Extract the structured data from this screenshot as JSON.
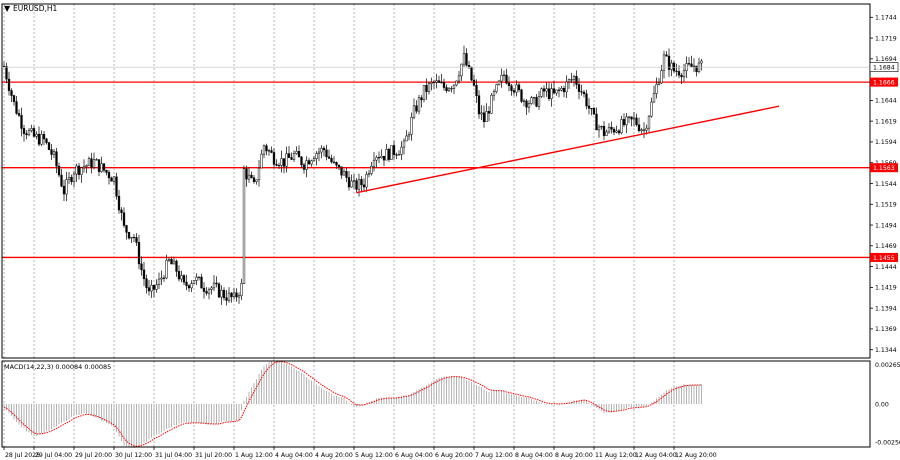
{
  "window": {
    "title": "EURUSD,H1",
    "menu_icon": "triangle-down-icon"
  },
  "colors": {
    "background": "#ffffff",
    "axis": "#000000",
    "grid": "#808080",
    "candle": "#000000",
    "level_line": "#ff0000",
    "level_label_bg": "#ff0000",
    "level_label_text": "#ffffff",
    "current_price_bg": "#ffffff",
    "macd_hist": "#a0a0a0",
    "macd_signal": "#ff0000"
  },
  "chart_data": [
    {
      "type": "candlestick",
      "symbol": "EURUSD",
      "timeframe": "H1",
      "y_ticks": [
        "1.1744",
        "1.1719",
        "1.1694",
        "1.1669",
        "1.1644",
        "1.1619",
        "1.1594",
        "1.1569",
        "1.1544",
        "1.1519",
        "1.1494",
        "1.1469",
        "1.1444",
        "1.1419",
        "1.1394",
        "1.1369",
        "1.1344"
      ],
      "ylim": [
        1.1334,
        1.176
      ],
      "x_ticks": [
        "28 Jul 2025",
        "29 Jul 04:00",
        "29 Jul 20:00",
        "30 Jul 12:00",
        "31 Jul 04:00",
        "31 Jul 20:00",
        "1 Aug 12:00",
        "4 Aug 04:00",
        "4 Aug 20:00",
        "5 Aug 12:00",
        "6 Aug 04:00",
        "6 Aug 20:00",
        "7 Aug 12:00",
        "8 Aug 04:00",
        "8 Aug 20:00",
        "11 Aug 12:00",
        "12 Aug 04:00",
        "12 Aug 20:00"
      ],
      "x_tick_index": [
        0,
        12,
        28,
        44,
        60,
        76,
        92,
        108,
        124,
        140,
        156,
        172,
        188,
        204,
        220,
        236,
        252,
        268
      ],
      "bar_count": 280,
      "levels": [
        {
          "value": 1.1666,
          "label": "1.1666"
        },
        {
          "value": 1.1563,
          "label": "1.1563"
        },
        {
          "value": 1.1455,
          "label": "1.1455"
        }
      ],
      "current_price": {
        "value": 1.1684,
        "label": "1.1684"
      },
      "trendline": {
        "from": {
          "bar": 141,
          "price": 1.1533
        },
        "to": {
          "bar": 310,
          "price": 1.1637
        }
      },
      "close_path": [
        [
          0,
          1.1685
        ],
        [
          4,
          1.164
        ],
        [
          8,
          1.161
        ],
        [
          12,
          1.16
        ],
        [
          16,
          1.1596
        ],
        [
          20,
          1.1575
        ],
        [
          24,
          1.1535
        ],
        [
          28,
          1.156
        ],
        [
          32,
          1.1565
        ],
        [
          36,
          1.157
        ],
        [
          40,
          1.156
        ],
        [
          44,
          1.155
        ],
        [
          48,
          1.149
        ],
        [
          52,
          1.148
        ],
        [
          55,
          1.144
        ],
        [
          58,
          1.141
        ],
        [
          62,
          1.1425
        ],
        [
          66,
          1.145
        ],
        [
          69,
          1.144
        ],
        [
          72,
          1.142
        ],
        [
          76,
          1.143
        ],
        [
          80,
          1.142
        ],
        [
          84,
          1.1418
        ],
        [
          88,
          1.141
        ],
        [
          92,
          1.1405
        ],
        [
          95,
          1.142
        ],
        [
          96,
          1.156
        ],
        [
          100,
          1.154
        ],
        [
          104,
          1.159
        ],
        [
          108,
          1.1575
        ],
        [
          112,
          1.157
        ],
        [
          116,
          1.1578
        ],
        [
          120,
          1.1568
        ],
        [
          124,
          1.158
        ],
        [
          128,
          1.1585
        ],
        [
          132,
          1.1565
        ],
        [
          136,
          1.1555
        ],
        [
          140,
          1.154
        ],
        [
          144,
          1.1545
        ],
        [
          148,
          1.158
        ],
        [
          152,
          1.1578
        ],
        [
          156,
          1.1583
        ],
        [
          160,
          1.1588
        ],
        [
          164,
          1.163
        ],
        [
          168,
          1.1655
        ],
        [
          172,
          1.1665
        ],
        [
          176,
          1.166
        ],
        [
          180,
          1.1665
        ],
        [
          184,
          1.1695
        ],
        [
          188,
          1.166
        ],
        [
          190,
          1.163
        ],
        [
          192,
          1.162
        ],
        [
          196,
          1.165
        ],
        [
          200,
          1.1675
        ],
        [
          204,
          1.166
        ],
        [
          208,
          1.1645
        ],
        [
          212,
          1.164
        ],
        [
          216,
          1.1655
        ],
        [
          220,
          1.165
        ],
        [
          224,
          1.166
        ],
        [
          228,
          1.1672
        ],
        [
          232,
          1.165
        ],
        [
          236,
          1.162
        ],
        [
          240,
          1.1605
        ],
        [
          244,
          1.161
        ],
        [
          248,
          1.1615
        ],
        [
          252,
          1.162
        ],
        [
          256,
          1.1608
        ],
        [
          260,
          1.165
        ],
        [
          264,
          1.1695
        ],
        [
          268,
          1.168
        ],
        [
          272,
          1.168
        ],
        [
          276,
          1.1686
        ],
        [
          279,
          1.1684
        ]
      ]
    },
    {
      "type": "bar",
      "indicator": "MACD",
      "title": "MACD(14,22,3) 0.00084 0.00085",
      "y_ticks": [
        "0.00265",
        "0.00",
        "-0.00256"
      ],
      "ylim": [
        -0.0029,
        0.0029
      ],
      "macd_path": [
        [
          0,
          -0.0002
        ],
        [
          6,
          -0.0014
        ],
        [
          12,
          -0.0022
        ],
        [
          18,
          -0.0018
        ],
        [
          24,
          -0.0012
        ],
        [
          28,
          -0.0008
        ],
        [
          32,
          -0.0006
        ],
        [
          38,
          -0.001
        ],
        [
          44,
          -0.0016
        ],
        [
          48,
          -0.0028
        ],
        [
          52,
          -0.003
        ],
        [
          56,
          -0.0026
        ],
        [
          60,
          -0.0022
        ],
        [
          66,
          -0.0016
        ],
        [
          72,
          -0.0012
        ],
        [
          78,
          -0.0013
        ],
        [
          84,
          -0.0014
        ],
        [
          88,
          -0.0012
        ],
        [
          94,
          -0.0011
        ],
        [
          96,
          0.0002
        ],
        [
          100,
          0.0014
        ],
        [
          104,
          0.0026
        ],
        [
          108,
          0.003
        ],
        [
          112,
          0.0028
        ],
        [
          116,
          0.0024
        ],
        [
          120,
          0.002
        ],
        [
          124,
          0.0014
        ],
        [
          128,
          0.001
        ],
        [
          132,
          0.0006
        ],
        [
          136,
          0.0004
        ],
        [
          140,
          -0.0002
        ],
        [
          144,
          0.0
        ],
        [
          150,
          0.0004
        ],
        [
          156,
          0.0004
        ],
        [
          162,
          0.0006
        ],
        [
          168,
          0.0012
        ],
        [
          174,
          0.0018
        ],
        [
          180,
          0.0019
        ],
        [
          186,
          0.0016
        ],
        [
          190,
          0.0012
        ],
        [
          194,
          0.0008
        ],
        [
          198,
          0.0009
        ],
        [
          204,
          0.0006
        ],
        [
          210,
          0.0004
        ],
        [
          216,
          0.0
        ],
        [
          222,
          0.0
        ],
        [
          228,
          0.0002
        ],
        [
          232,
          0.0003
        ],
        [
          236,
          -0.0002
        ],
        [
          240,
          -0.0006
        ],
        [
          244,
          -0.0005
        ],
        [
          248,
          -0.0003
        ],
        [
          252,
          -0.0002
        ],
        [
          256,
          -0.0002
        ],
        [
          260,
          0.0002
        ],
        [
          264,
          0.0008
        ],
        [
          268,
          0.0012
        ],
        [
          272,
          0.0013
        ],
        [
          279,
          0.0013
        ]
      ]
    }
  ]
}
